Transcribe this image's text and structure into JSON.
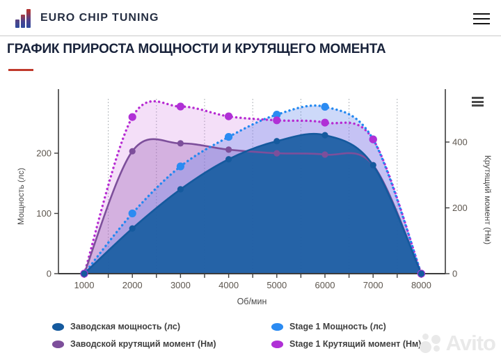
{
  "header": {
    "brand": "EURO CHIP TUNING",
    "logo_icon": "bar-chart-growth",
    "menu_icon": "hamburger"
  },
  "page": {
    "title": "ГРАФИК ПРИРОСТА МОЩНОСТИ И КРУТЯЩЕГО МОМЕНТА",
    "accent_color": "#c0392b"
  },
  "chart_data": {
    "type": "area",
    "x": [
      1000,
      2000,
      3000,
      4000,
      5000,
      6000,
      7000,
      8000
    ],
    "xlabel": "Об/мин",
    "x_ticks": [
      1000,
      2000,
      3000,
      4000,
      5000,
      6000,
      7000,
      8000
    ],
    "x_minor_ticks": [
      1500,
      2500,
      3500,
      4500,
      5500,
      6500,
      7500
    ],
    "x_minor_gridlines": [
      1500,
      2500,
      3500,
      4500,
      5500,
      6500,
      7500
    ],
    "axes": {
      "left": {
        "label": "Мощность (лс)",
        "ticks": [
          0,
          100,
          200
        ],
        "range": [
          0,
          292
        ]
      },
      "right": {
        "label": "Крутящий момент (Нм)",
        "ticks": [
          0,
          200,
          400
        ],
        "range": [
          0,
          535
        ]
      }
    },
    "series": [
      {
        "name": "Заводская мощность (лс)",
        "axis": "left",
        "line": "solid",
        "color": "#155a9e",
        "marker_color": "#155a9e",
        "fill": "rgba(27,94,163,0.93)",
        "values": [
          0,
          75,
          140,
          190,
          220,
          230,
          180,
          0
        ]
      },
      {
        "name": "Заводской крутящий момент (Нм)",
        "axis": "right",
        "line": "solid",
        "color": "#7d4f9b",
        "marker_color": "#7d4f9b",
        "fill": "rgba(146,82,173,0.32)",
        "values": [
          0,
          372,
          396,
          377,
          366,
          362,
          330,
          0
        ]
      },
      {
        "name": "Stage 1 Мощность (лс)",
        "axis": "left",
        "line": "dotted",
        "color": "#2288f0",
        "marker_color": "#2b8bf2",
        "fill": "rgba(90,130,235,0.30)",
        "values": [
          0,
          100,
          178,
          227,
          264,
          277,
          223,
          0
        ]
      },
      {
        "name": "Stage 1 Крутящий момент (Нм)",
        "axis": "right",
        "line": "dotted",
        "color": "#b62ad2",
        "marker_color": "#b030d6",
        "fill": "rgba(205,110,225,0.22)",
        "values": [
          0,
          476,
          508,
          478,
          466,
          459,
          408,
          0
        ]
      }
    ],
    "legend_order": [
      0,
      2,
      1,
      3
    ],
    "grid": "vertical-dotted-minor",
    "legend_position": "bottom",
    "context_menu_icon": "hamburger"
  },
  "watermark": {
    "text": "Avito",
    "icon": "avito-logo"
  }
}
